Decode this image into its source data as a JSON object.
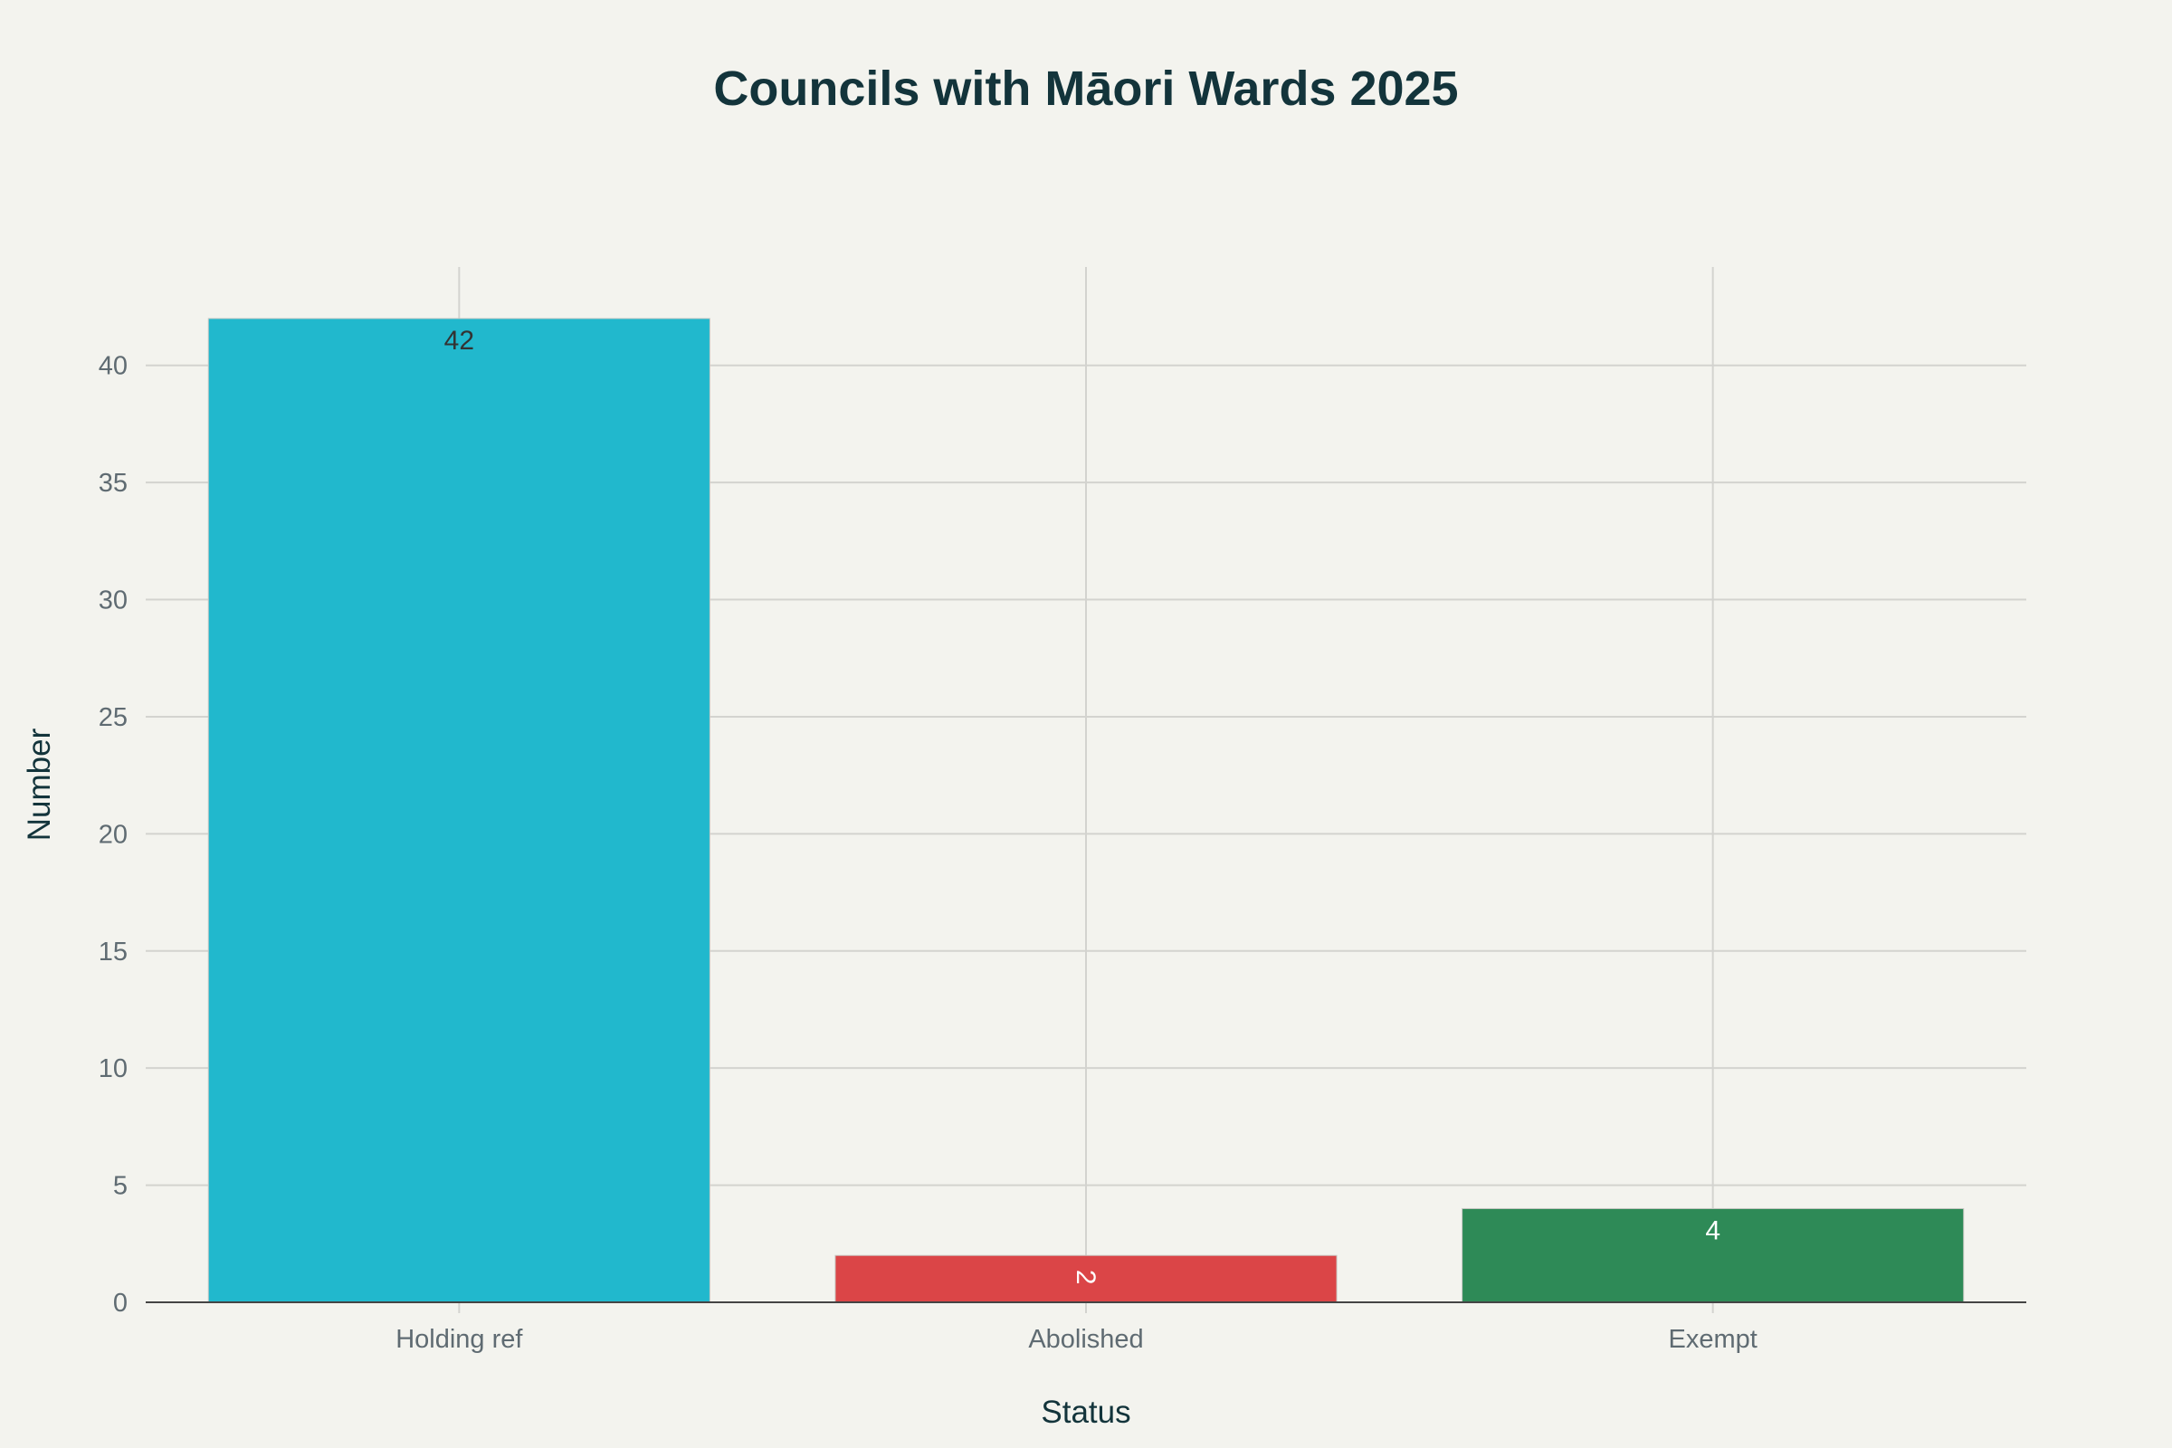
{
  "chart_data": {
    "type": "bar",
    "title": "Councils with Māori Wards 2025",
    "xlabel": "Status",
    "ylabel": "Number",
    "categories": [
      "Holding ref",
      "Abolished",
      "Exempt"
    ],
    "values": [
      42,
      2,
      4
    ],
    "data_labels": [
      "42",
      "2",
      "4"
    ],
    "colors": [
      "#21b8cd",
      "#db4547",
      "#2e8a57"
    ],
    "label_colors": [
      "#333333",
      "#ffffff",
      "#ffffff"
    ],
    "ylim": [
      0,
      44.2
    ],
    "yticks": [
      0,
      5,
      10,
      15,
      20,
      25,
      30,
      35,
      40
    ],
    "ytick_labels": [
      "0",
      "5",
      "10",
      "15",
      "20",
      "25",
      "30",
      "35",
      "40"
    ],
    "grid": true,
    "legend": "none"
  }
}
